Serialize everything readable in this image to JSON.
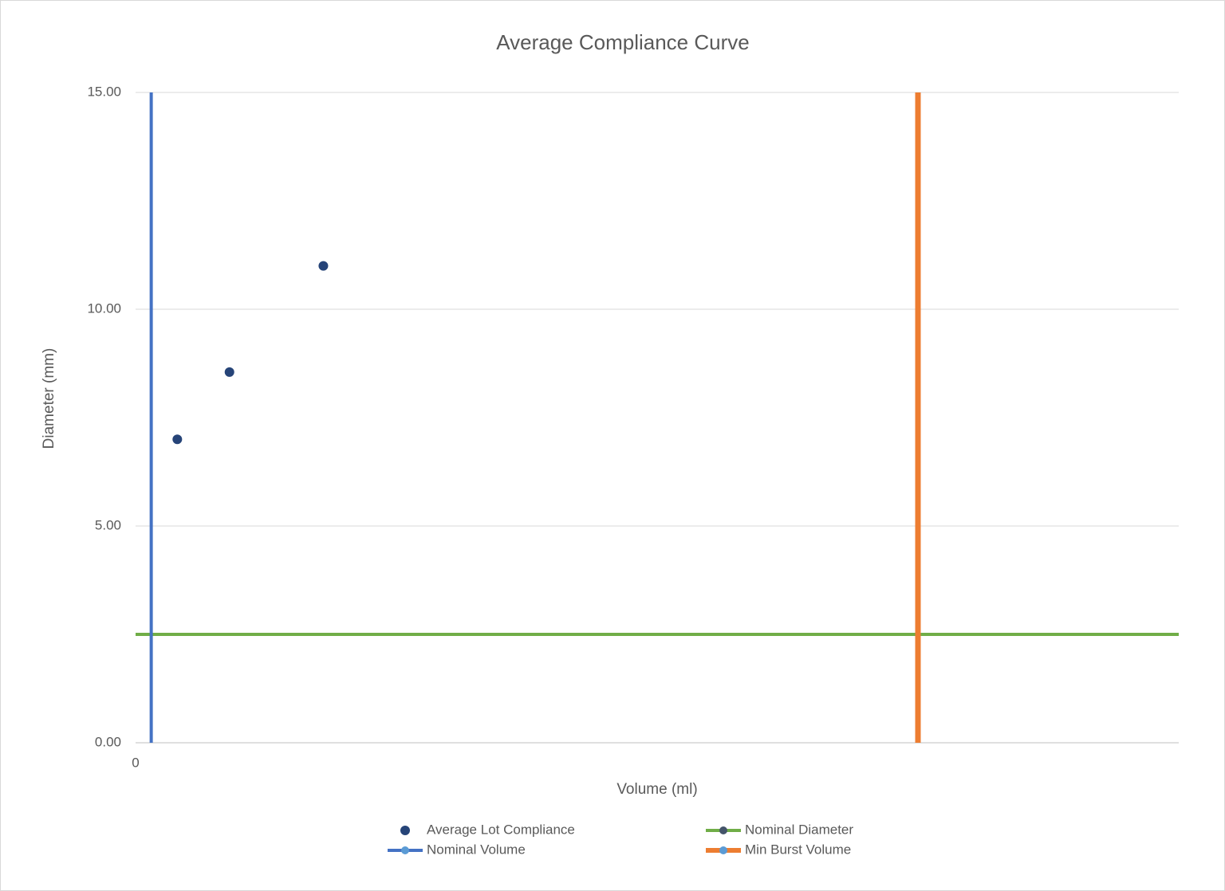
{
  "chart_data": {
    "type": "scatter",
    "title": "Average Compliance Curve",
    "x_label": "Volume (ml)",
    "y_label": "Diameter (mm)",
    "xlim": [
      0,
      20
    ],
    "ylim": [
      0,
      15
    ],
    "xticks": [
      0
    ],
    "yticks": [
      {
        "value": 0,
        "label": "0.00"
      },
      {
        "value": 5,
        "label": "5.00"
      },
      {
        "value": 10,
        "label": "10.00"
      },
      {
        "value": 15,
        "label": "15.00"
      }
    ],
    "grid": true,
    "series": [
      {
        "name": "Average Lot Compliance",
        "kind": "points",
        "color": "#264478",
        "x": [
          0.8,
          1.8,
          3.6
        ],
        "values": [
          7.0,
          8.55,
          11.0
        ]
      },
      {
        "name": "Nominal Diameter",
        "kind": "line",
        "color": "#70ad47",
        "marker_color": "#44546a",
        "x": [
          0,
          20
        ],
        "values": [
          2.5,
          2.5
        ]
      },
      {
        "name": "Nominal Volume",
        "kind": "line",
        "color": "#4472c4",
        "marker_color": "#5b9bd5",
        "x": [
          0.3,
          0.3
        ],
        "values": [
          0,
          15
        ]
      },
      {
        "name": "Min Burst Volume",
        "kind": "line",
        "color": "#ed7d31",
        "marker_color": "#5b9bd5",
        "x": [
          15,
          15
        ],
        "values": [
          0,
          15
        ]
      }
    ]
  }
}
